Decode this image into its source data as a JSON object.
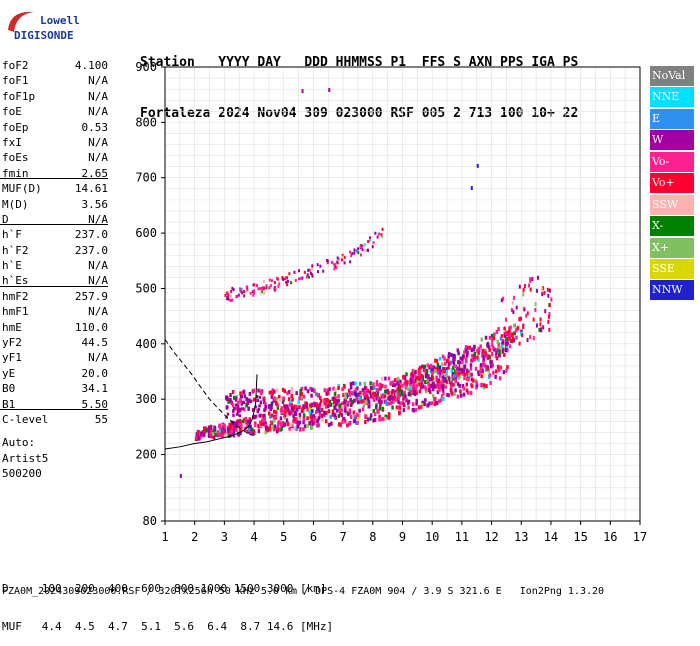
{
  "logo": {
    "line1": "Lowell",
    "line2": "DIGISONDE"
  },
  "header": {
    "line1": "Station   YYYY DAY   DDD HHMMSS P1  FFS S AXN PPS IGA PS",
    "line2": "Fortaleza 2024 Nov04 309 023000 RSF 005 2 713 100 10+ 22"
  },
  "params": [
    {
      "label": "foF2",
      "value": "4.100"
    },
    {
      "label": "foF1",
      "value": "N/A"
    },
    {
      "label": "foF1p",
      "value": "N/A"
    },
    {
      "label": "foE",
      "value": "N/A"
    },
    {
      "label": "foEp",
      "value": "0.53"
    },
    {
      "label": "fxI",
      "value": "N/A"
    },
    {
      "label": "foEs",
      "value": "N/A"
    },
    {
      "label": "fmin",
      "value": "2.65"
    },
    {
      "label": "MUF(D)",
      "value": "14.61"
    },
    {
      "label": "M(D)",
      "value": "3.56"
    },
    {
      "label": "D",
      "value": "N/A"
    },
    {
      "label": "h`F",
      "value": "237.0"
    },
    {
      "label": "h`F2",
      "value": "237.0"
    },
    {
      "label": "h`E",
      "value": "N/A"
    },
    {
      "label": "h`Es",
      "value": "N/A"
    },
    {
      "label": "hmF2",
      "value": "257.9"
    },
    {
      "label": "hmF1",
      "value": "N/A"
    },
    {
      "label": "hmE",
      "value": "110.0"
    },
    {
      "label": "yF2",
      "value": "44.5"
    },
    {
      "label": "yF1",
      "value": "N/A"
    },
    {
      "label": "yE",
      "value": "20.0"
    },
    {
      "label": "B0",
      "value": "34.1"
    },
    {
      "label": "B1",
      "value": "5.50"
    },
    {
      "label": "C-level",
      "value": "55"
    }
  ],
  "auto": {
    "line1": "Auto:",
    "line2": "Artist5",
    "line3": "500200"
  },
  "legend": [
    {
      "label": "NoVal",
      "color": "#808080"
    },
    {
      "label": "NNE",
      "color": "#00e0ff"
    },
    {
      "label": "E",
      "color": "#3090f0"
    },
    {
      "label": "W",
      "color": "#a000a0"
    },
    {
      "label": "Vo-",
      "color": "#ff2090"
    },
    {
      "label": "Vo+",
      "color": "#ff0030"
    },
    {
      "label": "SSW",
      "color": "#ffb0b0"
    },
    {
      "label": "X-",
      "color": "#008000"
    },
    {
      "label": "X+",
      "color": "#80c060"
    },
    {
      "label": "SSE",
      "color": "#d8d800"
    },
    {
      "label": "NNW",
      "color": "#2020d0"
    }
  ],
  "footer": {
    "line1": "D     100  200  400  600  800 1000 1500 3000 [km]",
    "line2": "MUF   4.4  4.5  4.7  5.1  5.6  6.4  8.7 14.6 [MHz]",
    "line3": "FZA0M_2024309023000.RSF / 320fx256h 50 kHz 5.0 km / DPS-4 FZA0M 904 / 3.9 S 321.6 E   Ion2Png 1.3.20"
  },
  "chart_data": {
    "type": "scatter",
    "title": "",
    "xlabel": "",
    "ylabel": "",
    "xlim": [
      1,
      17
    ],
    "ylim": [
      80,
      900
    ],
    "x_ticks": [
      1,
      2,
      3,
      4,
      5,
      6,
      7,
      8,
      9,
      10,
      11,
      12,
      13,
      14,
      15,
      16,
      17
    ],
    "y_ticks": [
      80,
      200,
      300,
      400,
      500,
      600,
      700,
      800,
      900
    ],
    "grid": true,
    "legend_position": "right",
    "traces": [
      {
        "name": "O-trace profile",
        "style": "solid",
        "x": [
          1.0,
          1.5,
          2.0,
          2.4,
          2.8,
          3.1,
          3.4,
          3.6,
          3.8,
          3.95,
          4.05,
          4.1
        ],
        "y": [
          210,
          214,
          220,
          223,
          228,
          232,
          237,
          242,
          250,
          265,
          290,
          345
        ]
      },
      {
        "name": "Auto-fit curve",
        "style": "dashed",
        "x": [
          1.0,
          1.3,
          1.6,
          1.9,
          2.2,
          2.5,
          2.8,
          3.0,
          3.2,
          3.4,
          3.6,
          3.8,
          3.9
        ],
        "y": [
          408,
          385,
          365,
          345,
          322,
          300,
          283,
          272,
          262,
          252,
          245,
          238,
          235
        ]
      }
    ],
    "echo_regions": [
      {
        "name": "F2 o-trace main",
        "x": [
          2.0,
          2.5,
          3.0,
          3.5,
          4.0,
          4.5,
          5.0,
          5.5,
          6.0,
          6.5,
          7.0,
          7.5,
          8.0,
          8.5,
          9.0,
          9.5,
          10.0,
          10.5,
          11.0,
          11.5,
          12.0,
          12.5
        ],
        "y": [
          238,
          242,
          246,
          250,
          254,
          258,
          262,
          266,
          270,
          274,
          278,
          283,
          290,
          296,
          305,
          315,
          325,
          335,
          345,
          355,
          370,
          385
        ]
      },
      {
        "name": "F2 upper band",
        "x": [
          3.0,
          4.0,
          5.0,
          6.0,
          7.0,
          8.0,
          9.0,
          10.0,
          11.0,
          12.0,
          12.5,
          13.0
        ],
        "y": [
          300,
          300,
          302,
          305,
          310,
          318,
          328,
          340,
          360,
          380,
          410,
          440
        ]
      },
      {
        "name": "Multiple hop",
        "x": [
          3.0,
          4.0,
          5.0,
          5.5,
          6.0,
          7.0,
          7.5,
          8.0,
          8.3
        ],
        "y": [
          490,
          500,
          515,
          530,
          535,
          555,
          570,
          590,
          600
        ]
      },
      {
        "name": "Isolated echoes",
        "x": [
          1.5,
          5.6,
          6.5,
          11.3,
          11.5
        ],
        "y": [
          165,
          860,
          862,
          685,
          725
        ]
      }
    ]
  }
}
